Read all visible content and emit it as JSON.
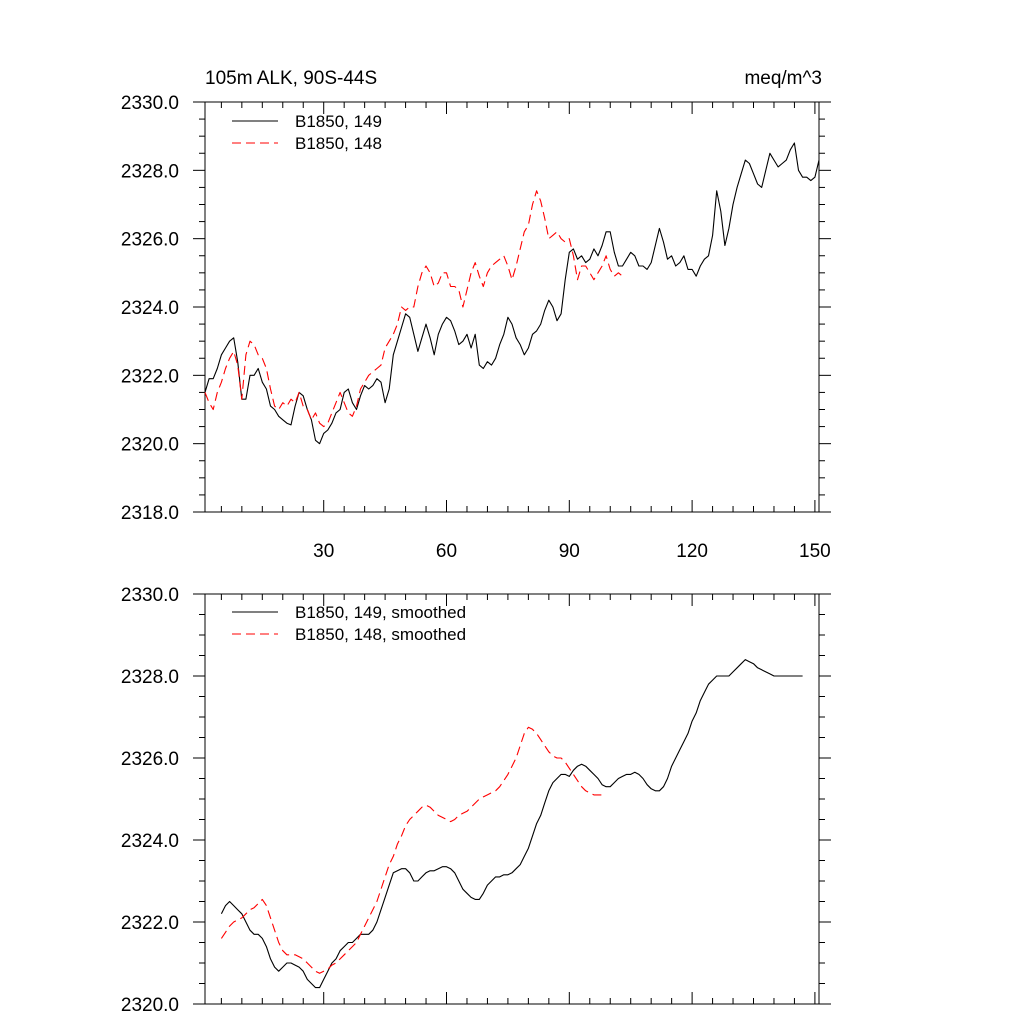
{
  "colors": {
    "series_149": "#000000",
    "series_148": "#ff0000"
  },
  "chart_data": [
    {
      "type": "line",
      "title": "105m ALK, 90S-44S",
      "units": "meq/m^3",
      "xlim": [
        1,
        151
      ],
      "ylim": [
        2318,
        2330
      ],
      "xticks": [
        30,
        60,
        90,
        120,
        150
      ],
      "xtick_labels": [
        "30",
        "60",
        "90",
        "120",
        "150"
      ],
      "yticks": [
        2318,
        2320,
        2322,
        2324,
        2326,
        2328,
        2330
      ],
      "ytick_labels": [
        "2318.0",
        "2320.0",
        "2322.0",
        "2324.0",
        "2326.0",
        "2328.0",
        "2330.0"
      ],
      "grid": false,
      "legend_position": "top-left",
      "series": [
        {
          "name": "B1850, 149",
          "style": "solid",
          "color": "#000000",
          "x": [
            1,
            2,
            3,
            4,
            5,
            6,
            7,
            8,
            9,
            10,
            11,
            12,
            13,
            14,
            15,
            16,
            17,
            18,
            19,
            20,
            21,
            22,
            23,
            24,
            25,
            26,
            27,
            28,
            29,
            30,
            31,
            32,
            33,
            34,
            35,
            36,
            37,
            38,
            39,
            40,
            41,
            42,
            43,
            44,
            45,
            46,
            47,
            48,
            49,
            50,
            51,
            52,
            53,
            54,
            55,
            56,
            57,
            58,
            59,
            60,
            61,
            62,
            63,
            64,
            65,
            66,
            67,
            68,
            69,
            70,
            71,
            72,
            73,
            74,
            75,
            76,
            77,
            78,
            79,
            80,
            81,
            82,
            83,
            84,
            85,
            86,
            87,
            88,
            89,
            90,
            91,
            92,
            93,
            94,
            95,
            96,
            97,
            98,
            99,
            100,
            101,
            102,
            103,
            104,
            105,
            106,
            107,
            108,
            109,
            110,
            111,
            112,
            113,
            114,
            115,
            116,
            117,
            118,
            119,
            120,
            121,
            122,
            123,
            124,
            125,
            126,
            127,
            128,
            129,
            130,
            131,
            132,
            133,
            134,
            135,
            136,
            137,
            138,
            139,
            140,
            141,
            142,
            143,
            144,
            145,
            146,
            147,
            148,
            149,
            150,
            151
          ],
          "y": [
            2321.5,
            2321.9,
            2321.9,
            2322.2,
            2322.6,
            2322.8,
            2323.0,
            2323.1,
            2322.4,
            2321.3,
            2321.3,
            2322.0,
            2322.0,
            2322.2,
            2321.8,
            2321.6,
            2321.1,
            2321.0,
            2320.8,
            2320.7,
            2320.6,
            2320.55,
            2321.1,
            2321.5,
            2321.4,
            2321.0,
            2320.7,
            2320.1,
            2320.0,
            2320.3,
            2320.4,
            2320.6,
            2320.9,
            2321.0,
            2321.5,
            2321.6,
            2321.2,
            2321.0,
            2321.4,
            2321.7,
            2321.6,
            2321.7,
            2321.9,
            2321.8,
            2321.2,
            2321.6,
            2322.6,
            2323.0,
            2323.4,
            2323.8,
            2323.7,
            2323.2,
            2322.7,
            2323.1,
            2323.5,
            2323.1,
            2322.6,
            2323.2,
            2323.5,
            2323.7,
            2323.6,
            2323.3,
            2322.9,
            2323.0,
            2323.2,
            2322.8,
            2323.2,
            2322.3,
            2322.2,
            2322.4,
            2322.3,
            2322.5,
            2322.9,
            2323.2,
            2323.7,
            2323.5,
            2323.1,
            2322.9,
            2322.6,
            2322.8,
            2323.2,
            2323.3,
            2323.5,
            2323.9,
            2324.2,
            2324.0,
            2323.6,
            2323.8,
            2324.8,
            2325.6,
            2325.7,
            2325.4,
            2325.5,
            2325.3,
            2325.4,
            2325.7,
            2325.5,
            2325.8,
            2326.2,
            2326.2,
            2325.6,
            2325.2,
            2325.2,
            2325.4,
            2325.6,
            2325.5,
            2325.2,
            2325.2,
            2325.1,
            2325.3,
            2325.8,
            2326.3,
            2325.9,
            2325.4,
            2325.5,
            2325.2,
            2325.3,
            2325.5,
            2325.1,
            2325.1,
            2324.9,
            2325.2,
            2325.4,
            2325.5,
            2326.1,
            2327.4,
            2326.8,
            2325.8,
            2326.3,
            2327.0,
            2327.5,
            2327.9,
            2328.3,
            2328.2,
            2327.9,
            2327.6,
            2327.5,
            2328.0,
            2328.5,
            2328.3,
            2328.1,
            2328.2,
            2328.3,
            2328.6,
            2328.8,
            2328.0,
            2327.8,
            2327.8,
            2327.7,
            2327.8,
            2328.3
          ]
        },
        {
          "name": "B1850, 148",
          "style": "dashed",
          "color": "#ff0000",
          "x": [
            1,
            2,
            3,
            4,
            5,
            6,
            7,
            8,
            9,
            10,
            11,
            12,
            13,
            14,
            15,
            16,
            17,
            18,
            19,
            20,
            21,
            22,
            23,
            24,
            25,
            26,
            27,
            28,
            29,
            30,
            31,
            32,
            33,
            34,
            35,
            36,
            37,
            38,
            39,
            40,
            41,
            42,
            43,
            44,
            45,
            46,
            47,
            48,
            49,
            50,
            51,
            52,
            53,
            54,
            55,
            56,
            57,
            58,
            59,
            60,
            61,
            62,
            63,
            64,
            65,
            66,
            67,
            68,
            69,
            70,
            71,
            72,
            73,
            74,
            75,
            76,
            77,
            78,
            79,
            80,
            81,
            82,
            83,
            84,
            85,
            86,
            87,
            88,
            89,
            90,
            91,
            92,
            93,
            94,
            95,
            96,
            97,
            98,
            99,
            100,
            101,
            102,
            103
          ],
          "y": [
            2321.5,
            2321.2,
            2321.0,
            2321.5,
            2321.8,
            2322.2,
            2322.5,
            2322.7,
            2322.3,
            2321.3,
            2322.6,
            2323.0,
            2322.9,
            2322.6,
            2322.5,
            2322.2,
            2321.6,
            2321.1,
            2321.0,
            2321.2,
            2321.1,
            2321.3,
            2321.2,
            2321.5,
            2321.1,
            2321.0,
            2320.7,
            2320.9,
            2320.6,
            2320.5,
            2320.6,
            2320.9,
            2321.2,
            2321.5,
            2321.2,
            2320.9,
            2320.8,
            2321.1,
            2321.6,
            2321.8,
            2322.0,
            2322.1,
            2322.2,
            2322.3,
            2322.8,
            2323.0,
            2323.2,
            2323.5,
            2324.0,
            2323.9,
            2324.0,
            2324.0,
            2324.6,
            2325.0,
            2325.2,
            2325.0,
            2324.6,
            2324.7,
            2325.0,
            2325.0,
            2324.6,
            2324.6,
            2324.5,
            2324.0,
            2324.5,
            2325.0,
            2325.3,
            2324.9,
            2324.6,
            2325.0,
            2325.2,
            2325.3,
            2325.4,
            2325.5,
            2325.2,
            2324.8,
            2325.2,
            2325.7,
            2326.2,
            2326.4,
            2327.0,
            2327.4,
            2327.1,
            2326.6,
            2326.0,
            2326.1,
            2326.2,
            2326.0,
            2325.9,
            2326.0,
            2325.5,
            2324.8,
            2325.2,
            2325.2,
            2325.0,
            2324.8,
            2325.0,
            2325.2,
            2325.5,
            2325.1,
            2324.9,
            2325.0,
            2324.9
          ]
        }
      ]
    },
    {
      "type": "line",
      "xlim": [
        1,
        151
      ],
      "ylim": [
        2320,
        2330
      ],
      "xticks": [
        30,
        60,
        90,
        120,
        150
      ],
      "yticks": [
        2320,
        2322,
        2324,
        2326,
        2328,
        2330
      ],
      "ytick_labels": [
        "2320.0",
        "2322.0",
        "2324.0",
        "2326.0",
        "2328.0",
        "2330.0"
      ],
      "grid": false,
      "legend_position": "top-left",
      "series": [
        {
          "name": "B1850, 149, smoothed",
          "style": "solid",
          "color": "#000000",
          "x": [
            5,
            6,
            7,
            8,
            9,
            10,
            11,
            12,
            13,
            14,
            15,
            16,
            17,
            18,
            19,
            20,
            21,
            22,
            23,
            24,
            25,
            26,
            27,
            28,
            29,
            30,
            31,
            32,
            33,
            34,
            35,
            36,
            37,
            38,
            39,
            40,
            41,
            42,
            43,
            44,
            45,
            46,
            47,
            48,
            49,
            50,
            51,
            52,
            53,
            54,
            55,
            56,
            57,
            58,
            59,
            60,
            61,
            62,
            63,
            64,
            65,
            66,
            67,
            68,
            69,
            70,
            71,
            72,
            73,
            74,
            75,
            76,
            77,
            78,
            79,
            80,
            81,
            82,
            83,
            84,
            85,
            86,
            87,
            88,
            89,
            90,
            91,
            92,
            93,
            94,
            95,
            96,
            97,
            98,
            99,
            100,
            101,
            102,
            103,
            104,
            105,
            106,
            107,
            108,
            109,
            110,
            111,
            112,
            113,
            114,
            115,
            116,
            117,
            118,
            119,
            120,
            121,
            122,
            123,
            124,
            125,
            126,
            127,
            128,
            129,
            130,
            131,
            132,
            133,
            134,
            135,
            136,
            137,
            138,
            139,
            140,
            141,
            142,
            143,
            144,
            145,
            146,
            147
          ],
          "y": [
            2322.2,
            2322.4,
            2322.5,
            2322.4,
            2322.3,
            2322.2,
            2322.0,
            2321.8,
            2321.7,
            2321.7,
            2321.6,
            2321.4,
            2321.1,
            2320.9,
            2320.8,
            2320.9,
            2321.0,
            2321.0,
            2320.95,
            2320.9,
            2320.8,
            2320.6,
            2320.5,
            2320.4,
            2320.4,
            2320.6,
            2320.8,
            2321.0,
            2321.1,
            2321.3,
            2321.4,
            2321.5,
            2321.5,
            2321.6,
            2321.7,
            2321.7,
            2321.7,
            2321.8,
            2322.0,
            2322.3,
            2322.6,
            2322.9,
            2323.2,
            2323.25,
            2323.3,
            2323.3,
            2323.2,
            2323.0,
            2323.0,
            2323.1,
            2323.2,
            2323.25,
            2323.25,
            2323.3,
            2323.35,
            2323.35,
            2323.3,
            2323.2,
            2323.0,
            2322.8,
            2322.7,
            2322.6,
            2322.55,
            2322.55,
            2322.7,
            2322.9,
            2323.0,
            2323.1,
            2323.1,
            2323.15,
            2323.15,
            2323.2,
            2323.3,
            2323.4,
            2323.6,
            2323.8,
            2324.1,
            2324.4,
            2324.6,
            2324.9,
            2325.2,
            2325.4,
            2325.5,
            2325.6,
            2325.6,
            2325.55,
            2325.7,
            2325.8,
            2325.85,
            2325.8,
            2325.7,
            2325.6,
            2325.5,
            2325.35,
            2325.3,
            2325.3,
            2325.4,
            2325.5,
            2325.55,
            2325.6,
            2325.6,
            2325.65,
            2325.6,
            2325.5,
            2325.35,
            2325.25,
            2325.2,
            2325.2,
            2325.3,
            2325.5,
            2325.8,
            2326.0,
            2326.2,
            2326.4,
            2326.6,
            2326.9,
            2327.1,
            2327.4,
            2327.6,
            2327.8,
            2327.9,
            2328.0,
            2328.0,
            2328.0,
            2328.0,
            2328.1,
            2328.2,
            2328.3,
            2328.4,
            2328.35,
            2328.3,
            2328.2,
            2328.15,
            2328.1,
            2328.05,
            2328.0,
            2328.0,
            2328.0,
            2328.0,
            2328.0,
            2328.0,
            2328.0,
            2328.0
          ]
        },
        {
          "name": "B1850, 148, smoothed",
          "style": "dashed",
          "color": "#ff0000",
          "x": [
            5,
            6,
            7,
            8,
            9,
            10,
            11,
            12,
            13,
            14,
            15,
            16,
            17,
            18,
            19,
            20,
            21,
            22,
            23,
            24,
            25,
            26,
            27,
            28,
            29,
            30,
            31,
            32,
            33,
            34,
            35,
            36,
            37,
            38,
            39,
            40,
            41,
            42,
            43,
            44,
            45,
            46,
            47,
            48,
            49,
            50,
            51,
            52,
            53,
            54,
            55,
            56,
            57,
            58,
            59,
            60,
            61,
            62,
            63,
            64,
            65,
            66,
            67,
            68,
            69,
            70,
            71,
            72,
            73,
            74,
            75,
            76,
            77,
            78,
            79,
            80,
            81,
            82,
            83,
            84,
            85,
            86,
            87,
            88,
            89,
            90,
            91,
            92,
            93,
            94,
            95,
            96,
            97,
            98,
            99
          ],
          "y": [
            2321.6,
            2321.75,
            2321.9,
            2322.0,
            2322.05,
            2322.1,
            2322.2,
            2322.3,
            2322.35,
            2322.45,
            2322.55,
            2322.4,
            2322.1,
            2321.8,
            2321.5,
            2321.3,
            2321.2,
            2321.2,
            2321.2,
            2321.15,
            2321.1,
            2321.0,
            2320.9,
            2320.8,
            2320.75,
            2320.8,
            2320.85,
            2320.95,
            2321.0,
            2321.1,
            2321.2,
            2321.3,
            2321.4,
            2321.5,
            2321.7,
            2321.9,
            2322.1,
            2322.3,
            2322.5,
            2322.8,
            2323.1,
            2323.4,
            2323.6,
            2323.9,
            2324.1,
            2324.35,
            2324.5,
            2324.6,
            2324.7,
            2324.8,
            2324.85,
            2324.8,
            2324.7,
            2324.6,
            2324.55,
            2324.5,
            2324.45,
            2324.5,
            2324.6,
            2324.65,
            2324.7,
            2324.8,
            2324.9,
            2325.0,
            2325.05,
            2325.1,
            2325.15,
            2325.2,
            2325.3,
            2325.45,
            2325.6,
            2325.8,
            2326.0,
            2326.3,
            2326.6,
            2326.75,
            2326.7,
            2326.6,
            2326.45,
            2326.3,
            2326.15,
            2326.05,
            2326.0,
            2326.0,
            2325.9,
            2325.75,
            2325.6,
            2325.45,
            2325.3,
            2325.2,
            2325.15,
            2325.1,
            2325.1,
            2325.1,
            2325.1
          ]
        }
      ]
    }
  ]
}
